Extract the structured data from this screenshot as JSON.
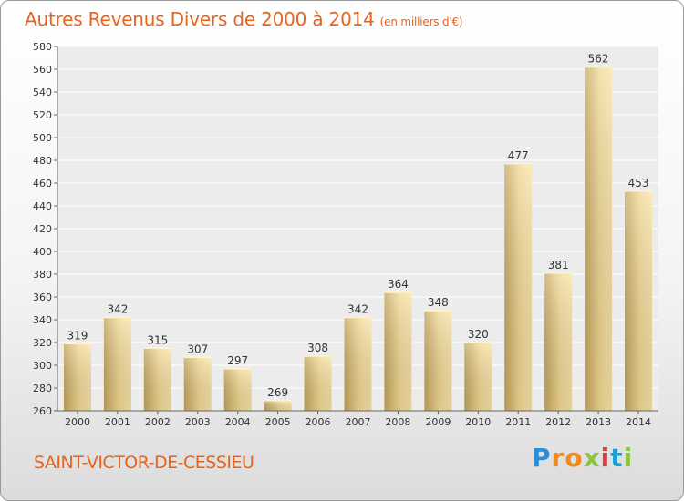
{
  "title": "Autres Revenus Divers de 2000 à 2014",
  "title_unit": "(en milliers d'€)",
  "commune": "SAINT-VICTOR-DE-CESSIEU",
  "logo": {
    "letters": [
      "P",
      "r",
      "o",
      "x",
      "i",
      "t",
      "i"
    ],
    "colors": [
      "#2a8fd6",
      "#f08a1c",
      "#f08a1c",
      "#8cc63f",
      "#e23c3c",
      "#1c9fd6",
      "#8cc63f"
    ]
  },
  "colors": {
    "accent": "#e8631c",
    "bar_light": "#f6dc96",
    "bar_dark": "#c4a45c"
  },
  "chart_data": {
    "type": "bar",
    "title": "Autres Revenus Divers de 2000 à 2014",
    "categories": [
      "2000",
      "2001",
      "2002",
      "2003",
      "2004",
      "2005",
      "2006",
      "2007",
      "2008",
      "2009",
      "2010",
      "2011",
      "2012",
      "2013",
      "2014"
    ],
    "values": [
      319,
      342,
      315,
      307,
      297,
      269,
      308,
      342,
      364,
      348,
      320,
      477,
      381,
      562,
      453
    ],
    "ylim": [
      260,
      580
    ],
    "yticks": [
      260,
      280,
      300,
      320,
      340,
      360,
      380,
      400,
      420,
      440,
      460,
      480,
      500,
      520,
      540,
      560,
      580
    ],
    "grid": true,
    "data_labels": true
  }
}
